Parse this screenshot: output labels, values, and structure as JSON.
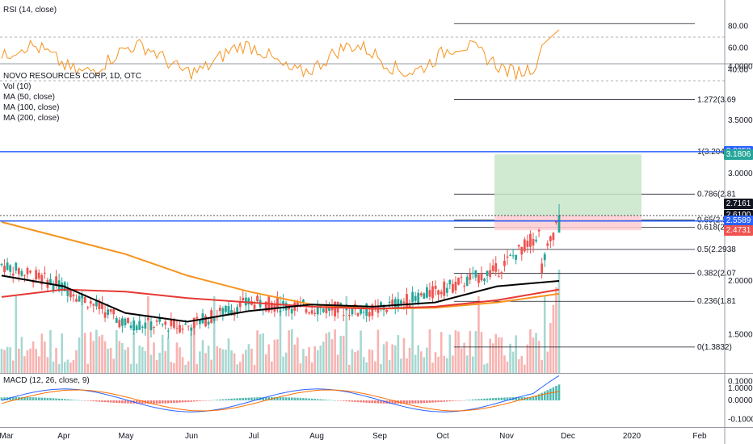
{
  "rsi_panel": {
    "label": "RSI (14, close)",
    "ticks": [
      "80.00",
      "60.00",
      "40.00"
    ]
  },
  "main_panel": {
    "legend": [
      "NOVO RESOURCES CORP, 1D, OTC",
      "Vol (10)",
      "MA (50, close)",
      "MA (100, close)",
      "MA (200, close)"
    ],
    "ticks": [
      "4.0000",
      "3.5000",
      "3.0000",
      "2.5000",
      "2.0000",
      "1.5000",
      "1.0000"
    ]
  },
  "macd_panel": {
    "label": "MACD (12, 26, close, 9)",
    "ticks": [
      "0.1000",
      "0.0000",
      "-0.1000"
    ]
  },
  "x_axis": [
    "Mar",
    "Apr",
    "May",
    "Jun",
    "Jul",
    "Aug",
    "Sep",
    "Oct",
    "Nov",
    "Dec",
    "2020",
    "Feb"
  ],
  "fib_levels": [
    {
      "label": "1.272(3.69",
      "price": 3.69
    },
    {
      "label": "1(3.2045)",
      "price": 3.2045
    },
    {
      "label": "0.786(2.81",
      "price": 2.81
    },
    {
      "label": "0.65(2.567",
      "price": 2.567
    },
    {
      "label": "0.618(2.50",
      "price": 2.5
    },
    {
      "label": "0.5(2.2938",
      "price": 2.2938
    },
    {
      "label": "0.382(2.07",
      "price": 2.07
    },
    {
      "label": "0.236(1.81",
      "price": 1.81
    },
    {
      "label": "0(1.3832)",
      "price": 1.3832
    }
  ],
  "price_tags": [
    {
      "text": "3.2058",
      "color": "#2962ff"
    },
    {
      "text": "3.1806",
      "color": "#26a69a"
    },
    {
      "text": "2.7161",
      "color": "#131722"
    },
    {
      "text": "2.6100",
      "color": "#131722"
    },
    {
      "text": "2.5589",
      "color": "#2962ff"
    },
    {
      "text": "2.4731",
      "color": "#ef5350"
    }
  ],
  "chart_data": {
    "type": "candlestick",
    "title": "NOVO RESOURCES CORP, 1D, OTC",
    "x": [
      "Mar",
      "Apr",
      "May",
      "Jun",
      "Jul",
      "Aug",
      "Sep",
      "Oct",
      "Nov",
      "Dec"
    ],
    "close": [
      2.15,
      1.95,
      1.6,
      1.58,
      1.8,
      1.75,
      1.72,
      1.9,
      2.1,
      2.61
    ],
    "ma50": [
      2.05,
      1.95,
      1.7,
      1.62,
      1.72,
      1.78,
      1.76,
      1.8,
      1.95,
      2.0
    ],
    "ma100": [
      1.85,
      1.92,
      1.9,
      1.84,
      1.8,
      1.76,
      1.74,
      1.76,
      1.82,
      1.92
    ],
    "ma200": [
      2.55,
      2.4,
      2.25,
      2.05,
      1.9,
      1.78,
      1.74,
      1.75,
      1.8,
      1.88
    ],
    "horizontal_lines": [
      3.2058,
      2.5589
    ],
    "ylim": [
      0.95,
      4.5
    ],
    "colors": {
      "up": "#26a69a",
      "down": "#ef5350",
      "ma50": "#000000",
      "ma100": "#e53935",
      "ma200": "#f7931e",
      "hline": "#2962ff",
      "rsi": "#f7931e",
      "macd": "#2962ff",
      "signal": "#ff6d00"
    }
  }
}
